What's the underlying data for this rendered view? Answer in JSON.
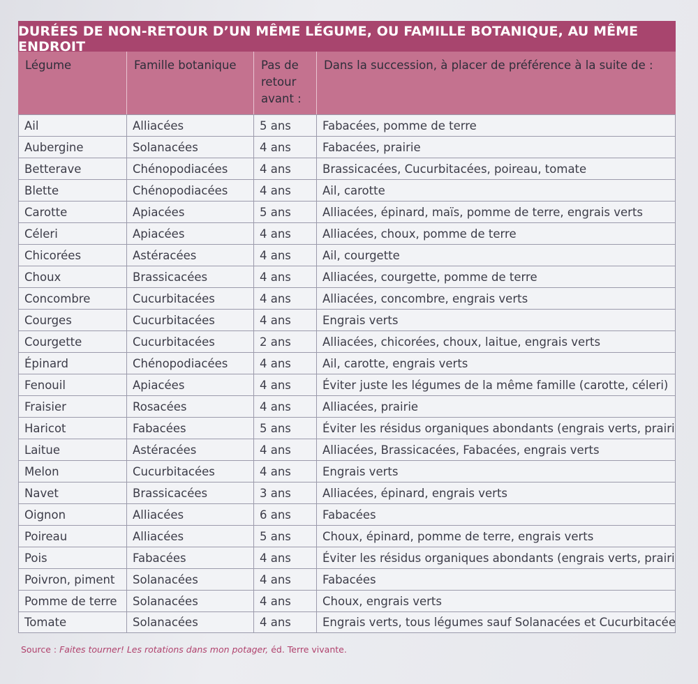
{
  "title": "DURÉES DE NON-RETOUR D’UN MÊME LÉGUME, OU FAMILLE BOTANIQUE, AU MÊME ENDROIT",
  "headers": {
    "legume": "Légume",
    "famille": "Famille botanique",
    "pas_line1": "Pas de",
    "pas_line2": "retour",
    "pas_line3": "avant :",
    "succession": "Dans la succession, à placer de préférence à la suite de :"
  },
  "rows": [
    {
      "legume": "Ail",
      "famille": "Alliacées",
      "duree": "5 ans",
      "suite": "Fabacées, pomme de terre"
    },
    {
      "legume": "Aubergine",
      "famille": "Solanacées",
      "duree": "4 ans",
      "suite": "Fabacées, prairie"
    },
    {
      "legume": "Betterave",
      "famille": "Chénopodiacées",
      "duree": "4 ans",
      "suite": "Brassicacées, Cucurbitacées, poireau, tomate"
    },
    {
      "legume": "Blette",
      "famille": "Chénopodiacées",
      "duree": "4 ans",
      "suite": "Ail, carotte"
    },
    {
      "legume": "Carotte",
      "famille": "Apiacées",
      "duree": "5 ans",
      "suite": "Alliacées, épinard, maïs, pomme de terre, engrais verts"
    },
    {
      "legume": "Céleri",
      "famille": "Apiacées",
      "duree": "4 ans",
      "suite": "Alliacées, choux, pomme de terre"
    },
    {
      "legume": "Chicorées",
      "famille": "Astéracées",
      "duree": "4 ans",
      "suite": "Ail, courgette"
    },
    {
      "legume": "Choux",
      "famille": "Brassicacées",
      "duree": "4 ans",
      "suite": "Alliacées, courgette, pomme de terre"
    },
    {
      "legume": "Concombre",
      "famille": "Cucurbitacées",
      "duree": "4 ans",
      "suite": "Alliacées, concombre, engrais verts"
    },
    {
      "legume": "Courges",
      "famille": "Cucurbitacées",
      "duree": "4 ans",
      "suite": "Engrais verts"
    },
    {
      "legume": "Courgette",
      "famille": "Cucurbitacées",
      "duree": "2 ans",
      "suite": "Alliacées, chicorées, choux, laitue, engrais verts"
    },
    {
      "legume": "Épinard",
      "famille": "Chénopodiacées",
      "duree": "4 ans",
      "suite": "Ail, carotte, engrais verts"
    },
    {
      "legume": "Fenouil",
      "famille": "Apiacées",
      "duree": "4 ans",
      "suite": "Éviter juste les légumes de la même famille (carotte, céleri)"
    },
    {
      "legume": "Fraisier",
      "famille": "Rosacées",
      "duree": "4 ans",
      "suite": "Alliacées, prairie"
    },
    {
      "legume": "Haricot",
      "famille": "Fabacées",
      "duree": "5 ans",
      "suite": "Éviter les résidus organiques abondants (engrais verts, prairie)"
    },
    {
      "legume": "Laitue",
      "famille": "Astéracées",
      "duree": "4 ans",
      "suite": "Alliacées, Brassicacées, Fabacées, engrais verts"
    },
    {
      "legume": "Melon",
      "famille": "Cucurbitacées",
      "duree": "4 ans",
      "suite": "Engrais verts"
    },
    {
      "legume": "Navet",
      "famille": "Brassicacées",
      "duree": "3 ans",
      "suite": "Alliacées, épinard, engrais verts"
    },
    {
      "legume": "Oignon",
      "famille": "Alliacées",
      "duree": "6 ans",
      "suite": "Fabacées"
    },
    {
      "legume": "Poireau",
      "famille": "Alliacées",
      "duree": "5 ans",
      "suite": "Choux, épinard, pomme de terre, engrais verts"
    },
    {
      "legume": "Pois",
      "famille": "Fabacées",
      "duree": "4 ans",
      "suite": "Éviter les résidus organiques abondants (engrais verts, prairie)"
    },
    {
      "legume": "Poivron, piment",
      "famille": "Solanacées",
      "duree": "4 ans",
      "suite": "Fabacées"
    },
    {
      "legume": "Pomme de terre",
      "famille": "Solanacées",
      "duree": "4 ans",
      "suite": "Choux, engrais verts"
    },
    {
      "legume": "Tomate",
      "famille": "Solanacées",
      "duree": "4 ans",
      "suite": "Engrais verts, tous légumes sauf Solanacées et Cucurbitacées"
    }
  ],
  "source": {
    "prefix": "Source : ",
    "work": "Faites tourner! Les rotations dans mon potager,",
    "suffix": " éd. Terre vivante."
  },
  "colors": {
    "title_bar": "#a8456e",
    "header_row": "#c4728f",
    "source_text": "#b0426d"
  }
}
